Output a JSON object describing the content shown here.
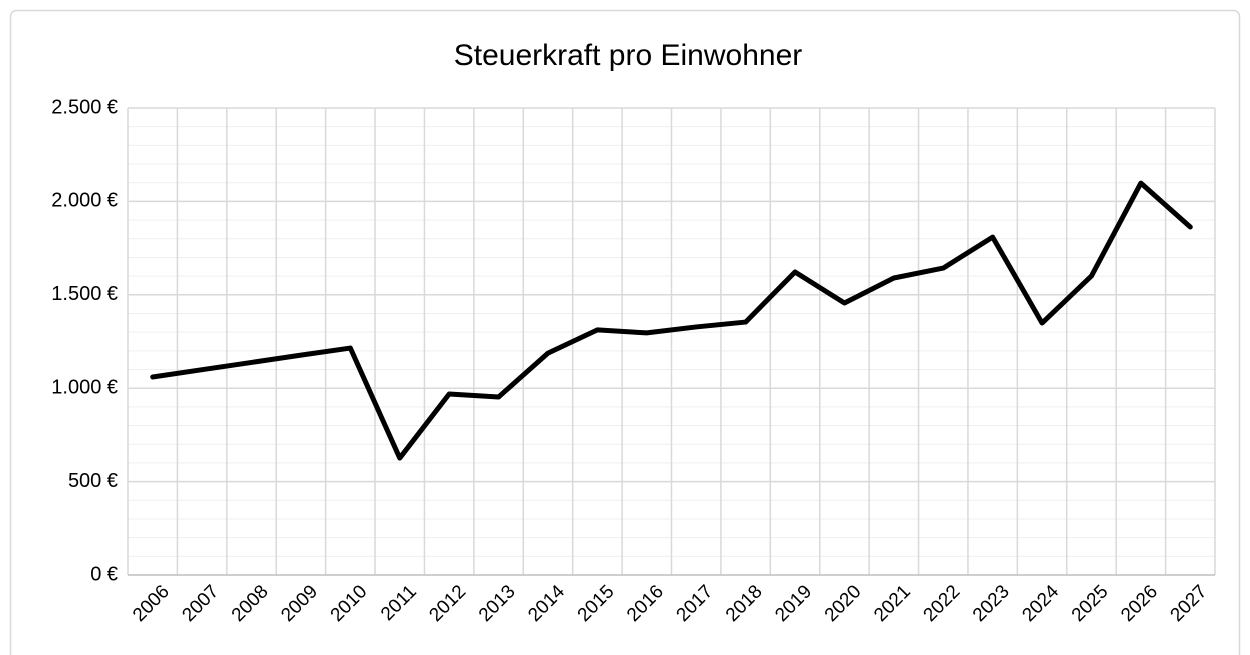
{
  "chart_data": {
    "type": "line",
    "title": "Steuerkraft pro Einwohner",
    "categories": [
      "2006",
      "2007",
      "2008",
      "2009",
      "2010",
      "2011",
      "2012",
      "2013",
      "2014",
      "2015",
      "2016",
      "2017",
      "2018",
      "2019",
      "2020",
      "2021",
      "2022",
      "2023",
      "2024",
      "2025",
      "2026",
      "2027"
    ],
    "series": [
      {
        "name": "Steuerkraft pro Einwohner",
        "color": "#000000",
        "values": [
          1060,
          1099,
          1138,
          1177,
          1215,
          626,
          969,
          953,
          1188,
          1312,
          1296,
          1328,
          1354,
          1622,
          1456,
          1590,
          1643,
          1809,
          1349,
          1601,
          2098,
          1863
        ]
      }
    ],
    "ylim": [
      0,
      2500
    ],
    "yticks": [
      {
        "value": 0,
        "label": "0 €"
      },
      {
        "value": 500,
        "label": "500 €"
      },
      {
        "value": 1000,
        "label": "1.000 €"
      },
      {
        "value": 1500,
        "label": "1.500 €"
      },
      {
        "value": 2000,
        "label": "2.000 €"
      },
      {
        "value": 2500,
        "label": "2.500 €"
      }
    ],
    "grid": true
  }
}
